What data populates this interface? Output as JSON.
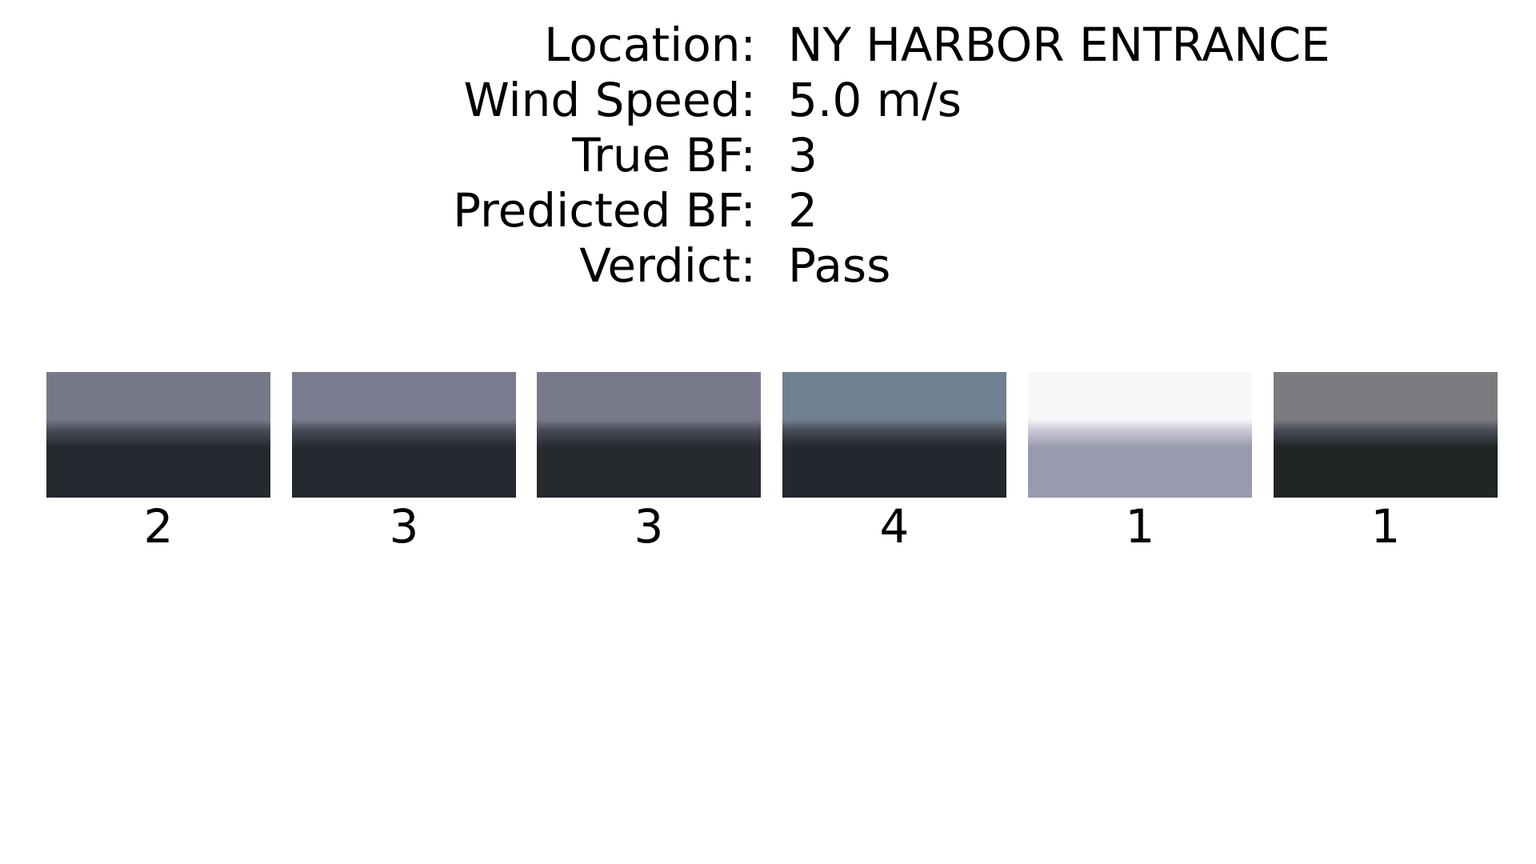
{
  "info": [
    {
      "label": "Location:",
      "value": "NY HARBOR ENTRANCE"
    },
    {
      "label": "Wind Speed:",
      "value": "5.0 m/s"
    },
    {
      "label": "True BF:",
      "value": "3"
    },
    {
      "label": "Predicted BF:",
      "value": "2"
    },
    {
      "label": "Verdict:",
      "value": "Pass"
    }
  ],
  "thumbnails": [
    {
      "label": "2",
      "sky": "#77798a",
      "sea": "#25292f",
      "tone": "dark"
    },
    {
      "label": "3",
      "sky": "#7a7b8e",
      "sea": "#262a30",
      "tone": "dark"
    },
    {
      "label": "3",
      "sky": "#787a8c",
      "sea": "#262a2f",
      "tone": "dark"
    },
    {
      "label": "4",
      "sky": "#6f8090",
      "sea": "#22282e",
      "tone": "dark"
    },
    {
      "label": "1",
      "sky": "#f6f7f9",
      "sea": "#9a9aae",
      "tone": "light"
    },
    {
      "label": "1",
      "sky": "#7b7b80",
      "sea": "#202526",
      "tone": "dark"
    }
  ]
}
